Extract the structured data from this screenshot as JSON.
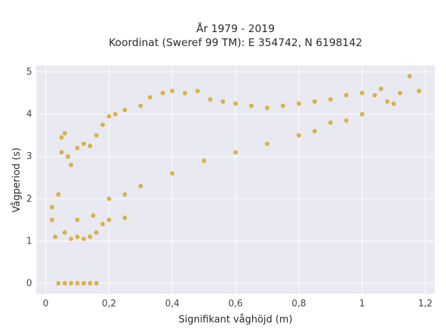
{
  "chart_data": {
    "type": "scatter",
    "title_lines": [
      "År 1979 - 2019",
      "Koordinat (Sweref 99 TM): E 354742, N 6198142"
    ],
    "xlabel": "Signifikant våghöjd (m)",
    "ylabel": "Vågperiod (s)",
    "xlim": [
      -0.03,
      1.23
    ],
    "ylim": [
      -0.25,
      5.15
    ],
    "xticks": [
      0,
      0.2,
      0.4,
      0.6,
      0.8,
      1,
      1.2
    ],
    "xtick_labels": [
      "0",
      "0,2",
      "0,4",
      "0,6",
      "0,8",
      "1",
      "1,2"
    ],
    "yticks": [
      0,
      1,
      2,
      3,
      4,
      5
    ],
    "ytick_labels": [
      "0",
      "1",
      "2",
      "3",
      "4",
      "5"
    ],
    "grid": true,
    "color": "#D4A21F",
    "plot_background": "#E9E9F1",
    "points": [
      [
        0.04,
        0
      ],
      [
        0.06,
        0
      ],
      [
        0.08,
        0
      ],
      [
        0.1,
        0
      ],
      [
        0.12,
        0
      ],
      [
        0.14,
        0
      ],
      [
        0.16,
        0
      ],
      [
        0.02,
        1.5
      ],
      [
        0.02,
        1.8
      ],
      [
        0.03,
        1.1
      ],
      [
        0.04,
        2.1
      ],
      [
        0.05,
        3.1
      ],
      [
        0.06,
        3.55
      ],
      [
        0.05,
        3.45
      ],
      [
        0.07,
        3.0
      ],
      [
        0.08,
        2.8
      ],
      [
        0.06,
        1.2
      ],
      [
        0.08,
        1.05
      ],
      [
        0.1,
        1.1
      ],
      [
        0.12,
        1.05
      ],
      [
        0.14,
        1.1
      ],
      [
        0.16,
        1.2
      ],
      [
        0.18,
        1.4
      ],
      [
        0.2,
        1.5
      ],
      [
        0.25,
        1.55
      ],
      [
        0.1,
        3.2
      ],
      [
        0.12,
        3.3
      ],
      [
        0.14,
        3.25
      ],
      [
        0.16,
        3.5
      ],
      [
        0.18,
        3.75
      ],
      [
        0.2,
        3.95
      ],
      [
        0.22,
        4.0
      ],
      [
        0.25,
        4.1
      ],
      [
        0.3,
        4.2
      ],
      [
        0.33,
        4.4
      ],
      [
        0.37,
        4.5
      ],
      [
        0.4,
        4.55
      ],
      [
        0.44,
        4.5
      ],
      [
        0.48,
        4.55
      ],
      [
        0.52,
        4.35
      ],
      [
        0.56,
        4.3
      ],
      [
        0.6,
        4.25
      ],
      [
        0.65,
        4.2
      ],
      [
        0.7,
        4.15
      ],
      [
        0.75,
        4.2
      ],
      [
        0.8,
        4.25
      ],
      [
        0.85,
        4.3
      ],
      [
        0.9,
        4.35
      ],
      [
        0.95,
        4.45
      ],
      [
        1.0,
        4.5
      ],
      [
        1.04,
        4.45
      ],
      [
        1.06,
        4.6
      ],
      [
        1.08,
        4.3
      ],
      [
        1.1,
        4.25
      ],
      [
        1.12,
        4.5
      ],
      [
        1.15,
        4.9
      ],
      [
        1.18,
        4.55
      ],
      [
        0.95,
        3.85
      ],
      [
        1.0,
        4.0
      ],
      [
        0.9,
        3.8
      ],
      [
        0.85,
        3.6
      ],
      [
        0.8,
        3.5
      ],
      [
        0.7,
        3.3
      ],
      [
        0.6,
        3.1
      ],
      [
        0.5,
        2.9
      ],
      [
        0.4,
        2.6
      ],
      [
        0.3,
        2.3
      ],
      [
        0.25,
        2.1
      ],
      [
        0.2,
        2.0
      ],
      [
        0.15,
        1.6
      ],
      [
        0.1,
        1.5
      ]
    ]
  }
}
